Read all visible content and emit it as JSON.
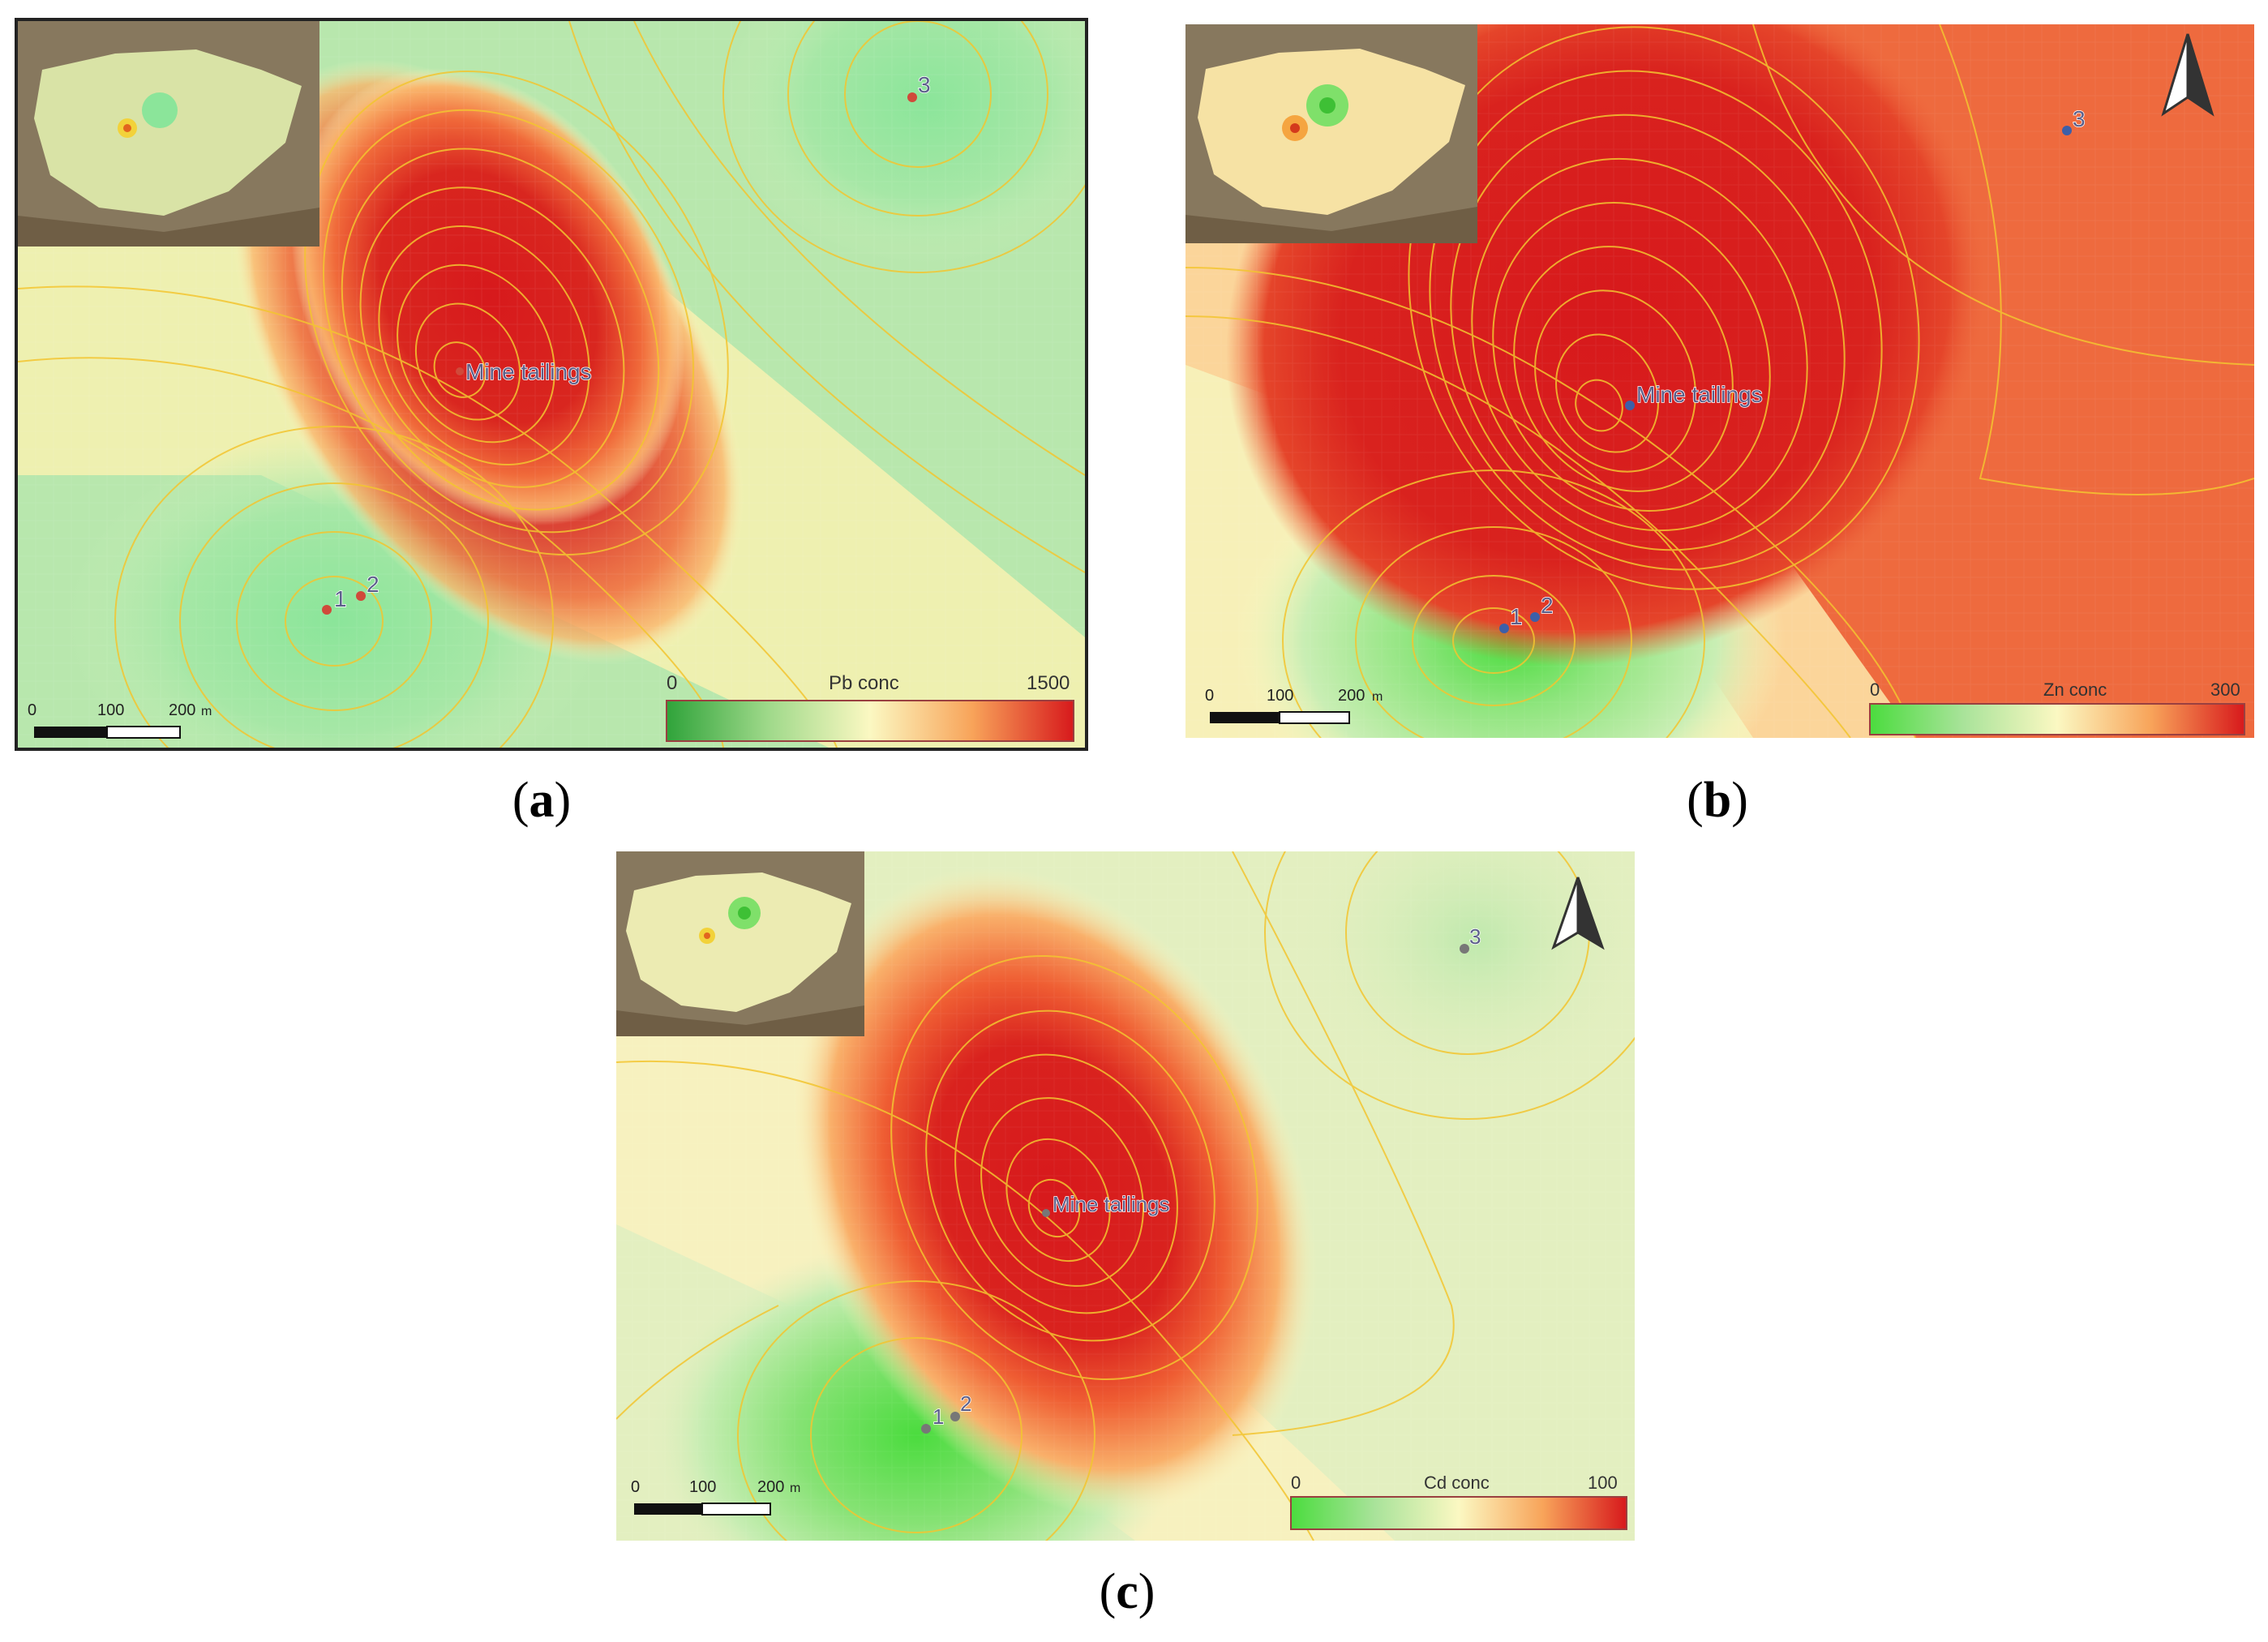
{
  "panels": [
    {
      "id": "a",
      "caption_letter": "a",
      "legend": {
        "title": "Pb conc",
        "min": "0",
        "max": "1500"
      },
      "scale_bar": {
        "labels": [
          "0",
          "100",
          "200"
        ],
        "unit": "m"
      },
      "source_label": "Mine tailings",
      "samples": [
        "1",
        "2",
        "3"
      ],
      "north_arrow": false,
      "colors": {
        "low": "#2fb83a",
        "mid": "#fbf8c2",
        "high": "#d7191c",
        "background": "#a7e6a2",
        "point": "#d04a3a"
      }
    },
    {
      "id": "b",
      "caption_letter": "b",
      "legend": {
        "title": "Zn conc",
        "min": "0",
        "max": "300"
      },
      "scale_bar": {
        "labels": [
          "0",
          "100",
          "200"
        ],
        "unit": "m"
      },
      "source_label": "Mine tailings",
      "samples": [
        "1",
        "2",
        "3"
      ],
      "north_arrow": true,
      "colors": {
        "low": "#4bdc3e",
        "mid": "#fbf8c2",
        "high": "#d7191c",
        "background": "#ee6a3e",
        "point": "#3d5fa8"
      }
    },
    {
      "id": "c",
      "caption_letter": "c",
      "legend": {
        "title": "Cd conc",
        "min": "0",
        "max": "100"
      },
      "scale_bar": {
        "labels": [
          "0",
          "100",
          "200"
        ],
        "unit": "m"
      },
      "source_label": "Mine tailings",
      "samples": [
        "1",
        "2",
        "3"
      ],
      "north_arrow": true,
      "colors": {
        "low": "#4bdc3e",
        "mid": "#fbf8c2",
        "high": "#d7191c",
        "background": "#e3efc0",
        "point": "#777777"
      }
    }
  ],
  "colors": {
    "contour": "#f3c530",
    "inset_terrain": "#7a6a52",
    "inset_plain": "#d9e3a6"
  }
}
